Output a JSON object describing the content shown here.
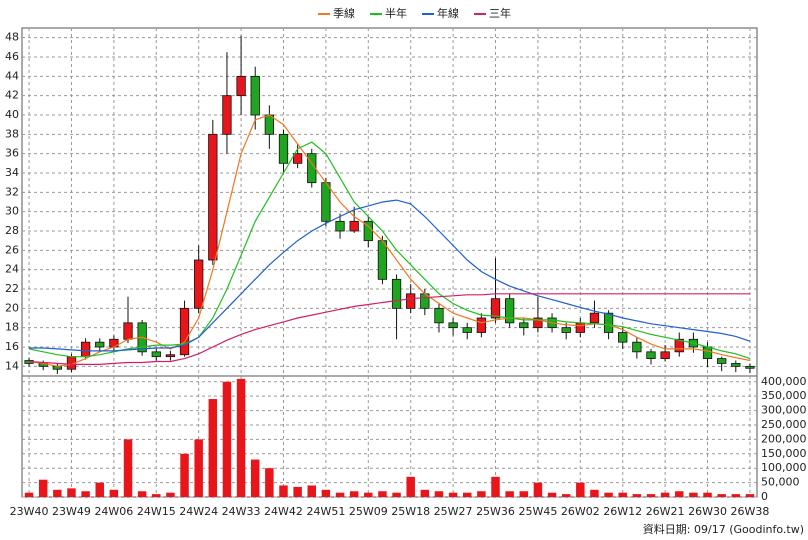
{
  "chart_data": {
    "type": "candlestick",
    "categories": [
      "23W40",
      null,
      null,
      "23W49",
      null,
      null,
      "24W06",
      null,
      null,
      "24W15",
      null,
      null,
      "24W24",
      null,
      null,
      "24W33",
      null,
      null,
      "24W42",
      null,
      null,
      "24W51",
      null,
      null,
      "25W09",
      null,
      null,
      "25W18",
      null,
      null,
      "25W27",
      null,
      null,
      "25W36",
      null,
      null,
      "25W45",
      null,
      null,
      "26W02",
      null,
      null,
      "26W12",
      null,
      null,
      "26W21",
      null,
      null,
      "26W30",
      null,
      null,
      "26W38"
    ],
    "open": [
      14.6,
      14.3,
      14.0,
      13.7,
      15.0,
      16.5,
      16.0,
      16.8,
      18.5,
      15.5,
      15.0,
      15.2,
      20,
      25,
      38,
      42,
      44,
      40,
      38,
      35,
      36,
      33,
      29,
      28,
      29,
      27,
      23,
      20,
      21.5,
      20,
      18.5,
      18,
      17.5,
      19,
      21,
      18.5,
      18,
      19,
      18,
      17.5,
      18.5,
      19.5,
      17.5,
      16.5,
      15.5,
      14.8,
      15.5,
      16.8,
      16,
      14.8,
      14.3,
      14.0
    ],
    "high": [
      14.9,
      14.6,
      14.3,
      15.3,
      16.9,
      16.9,
      17.2,
      21.2,
      18.8,
      15.8,
      15.6,
      20.8,
      26.5,
      39.5,
      46.5,
      48.2,
      45,
      41,
      38.5,
      37,
      36.5,
      33.5,
      29.8,
      30.5,
      29.5,
      27.5,
      23.5,
      22.5,
      22,
      20.5,
      19,
      18.5,
      19.5,
      25.2,
      21.5,
      19,
      21.2,
      19.5,
      18.5,
      19,
      20.8,
      19.8,
      18,
      17,
      15.8,
      16.2,
      17.5,
      17.5,
      16.5,
      15,
      14.6,
      14.3
    ],
    "low": [
      14.0,
      13.6,
      13.2,
      13.4,
      14.7,
      15.5,
      15.6,
      16.4,
      15.1,
      14.6,
      14.6,
      15,
      19.5,
      24.5,
      36,
      40,
      38.5,
      36.5,
      34,
      34.5,
      32.5,
      28.5,
      27.2,
      27.8,
      26.3,
      22.5,
      16.8,
      19.5,
      19.3,
      17.5,
      17.2,
      16.8,
      17,
      18.5,
      18,
      17.2,
      17.5,
      17.5,
      16.8,
      17,
      18,
      16.8,
      15.8,
      14.8,
      14.2,
      14.5,
      15,
      15.4,
      13.9,
      13.5,
      13.4,
      13.3
    ],
    "close": [
      14.3,
      14.0,
      13.7,
      15.0,
      16.5,
      16.0,
      16.8,
      18.5,
      15.5,
      15.0,
      15.2,
      20,
      25,
      38,
      42,
      44,
      40,
      38,
      35,
      36,
      33,
      29,
      28,
      29,
      27,
      23,
      20,
      21.5,
      20,
      18.5,
      18,
      17.5,
      19,
      21,
      18.5,
      18,
      19,
      18,
      17.5,
      18.5,
      19.5,
      17.5,
      16.5,
      15.5,
      14.8,
      15.5,
      16.8,
      16,
      14.8,
      14.3,
      14.0,
      13.8
    ],
    "volume": [
      15000,
      60000,
      25000,
      30000,
      20000,
      50000,
      25000,
      200000,
      20000,
      10000,
      15000,
      150000,
      200000,
      340000,
      400000,
      410000,
      130000,
      100000,
      40000,
      35000,
      40000,
      25000,
      15000,
      20000,
      15000,
      20000,
      15000,
      70000,
      25000,
      20000,
      15000,
      15000,
      20000,
      70000,
      20000,
      20000,
      50000,
      15000,
      10000,
      50000,
      25000,
      15000,
      15000,
      10000,
      10000,
      15000,
      20000,
      15000,
      15000,
      10000,
      10000,
      10000
    ],
    "series": [
      {
        "name": "季線",
        "color": "#f07820",
        "values": [
          14.5,
          14.3,
          14.0,
          14.2,
          14.8,
          15.5,
          16.0,
          16.8,
          17.0,
          16.5,
          15.8,
          16.5,
          19,
          24,
          30,
          36,
          39.5,
          40,
          39,
          37,
          35,
          33,
          31,
          29.5,
          28.5,
          27,
          25,
          23,
          21.5,
          20.5,
          19.5,
          19,
          18.5,
          18.8,
          19,
          19,
          18.8,
          18.5,
          18.3,
          18.2,
          18.4,
          18.3,
          17.8,
          17,
          16.3,
          15.8,
          15.8,
          15.8,
          15.6,
          15.2,
          14.9,
          14.6
        ]
      },
      {
        "name": "半年",
        "color": "#20c020",
        "values": [
          15.8,
          15.5,
          15.2,
          15.0,
          15.0,
          15.2,
          15.5,
          15.8,
          16,
          16.2,
          16.2,
          16.3,
          17,
          19,
          22,
          25.5,
          29,
          31.5,
          34,
          36.5,
          37.2,
          36,
          33.5,
          31,
          29.5,
          28,
          26,
          24.5,
          23,
          21.5,
          20.5,
          19.8,
          19.3,
          19.2,
          19,
          18.8,
          18.8,
          18.8,
          18.6,
          18.5,
          18.4,
          18.3,
          18.1,
          17.7,
          17.3,
          17,
          16.7,
          16.4,
          16,
          15.6,
          15.3,
          14.8
        ]
      },
      {
        "name": "年線",
        "color": "#2060d0",
        "values": [
          15.9,
          15.9,
          15.8,
          15.7,
          15.6,
          15.6,
          15.6,
          15.7,
          15.8,
          15.9,
          15.9,
          16.2,
          17,
          18.5,
          20,
          21.5,
          23,
          24.5,
          25.8,
          27,
          28,
          28.8,
          29.5,
          30.2,
          30.6,
          31,
          31.2,
          30.8,
          29.5,
          28,
          26.5,
          25,
          23.8,
          23,
          22.3,
          21.8,
          21.3,
          20.9,
          20.5,
          20.1,
          19.7,
          19.4,
          19,
          18.7,
          18.4,
          18.2,
          18,
          17.8,
          17.6,
          17.4,
          17.1,
          16.6
        ]
      },
      {
        "name": "三年",
        "color": "#d0206a",
        "values": [
          14.5,
          14.4,
          14.3,
          14.2,
          14.2,
          14.2,
          14.3,
          14.4,
          14.4,
          14.5,
          14.5,
          14.8,
          15.3,
          16,
          16.7,
          17.3,
          17.8,
          18.2,
          18.6,
          19,
          19.3,
          19.6,
          19.9,
          20.2,
          20.4,
          20.6,
          20.8,
          21,
          21.1,
          21.2,
          21.3,
          21.4,
          21.4,
          21.5,
          21.5,
          21.5,
          21.5,
          21.5,
          21.5,
          21.5,
          21.5,
          21.5,
          21.5,
          21.5,
          21.5,
          21.5,
          21.5,
          21.5,
          21.5,
          21.5,
          21.5,
          21.5
        ]
      }
    ],
    "up_color": "#e8161b",
    "down_color": "#1fa51f",
    "volume_color": "#e8161b",
    "ylim": [
      13,
      49
    ],
    "yticks": [
      14,
      16,
      18,
      20,
      22,
      24,
      26,
      28,
      30,
      32,
      34,
      36,
      38,
      40,
      42,
      44,
      46,
      48
    ],
    "y2lim": [
      0,
      420000
    ],
    "y2ticks": [
      0,
      {
        "value": 50000,
        "label": "50,000"
      },
      {
        "value": 100000,
        "label": "100,000"
      },
      {
        "value": 150000,
        "label": "150,000"
      },
      {
        "value": 200000,
        "label": "200,000"
      },
      {
        "value": 250000,
        "label": "250,000"
      },
      {
        "value": 300000,
        "label": "300,000"
      },
      {
        "value": 350000,
        "label": "350,000"
      },
      {
        "value": 400000,
        "label": "400,000"
      }
    ],
    "grid": true,
    "footer": "資料日期: 09/17 (Goodinfo.tw)"
  }
}
